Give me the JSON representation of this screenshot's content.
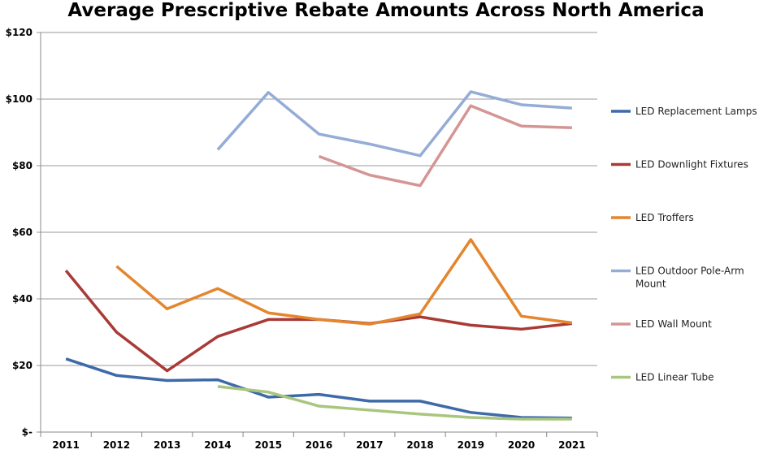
{
  "chart_data": {
    "type": "line",
    "title": "Average Prescriptive Rebate Amounts Across North America",
    "xlabel": "",
    "ylabel": "",
    "categories": [
      "2011",
      "2012",
      "2013",
      "2014",
      "2015",
      "2016",
      "2017",
      "2018",
      "2019",
      "2020",
      "2021"
    ],
    "ylim": [
      0,
      120
    ],
    "yticks": [
      0,
      20,
      40,
      60,
      80,
      100,
      120
    ],
    "ytick_labels": [
      "$-",
      "$20",
      "$40",
      "$60",
      "$80",
      "$100",
      "$120"
    ],
    "grid": "horizontal",
    "legend_position": "right",
    "series": [
      {
        "name": "LED Replacement Lamps",
        "color": "#3d6aa8",
        "values": [
          22,
          17,
          15.5,
          15.7,
          10.5,
          11.3,
          9.3,
          9.3,
          5.9,
          4.4,
          4.2
        ]
      },
      {
        "name": "LED Downlight Fixtures",
        "color": "#a93a36",
        "values": [
          48.5,
          30,
          18.4,
          28.7,
          33.8,
          33.8,
          32.6,
          34.6,
          32.1,
          30.9,
          32.6
        ]
      },
      {
        "name": "LED Troffers",
        "color": "#e3862e",
        "values": [
          null,
          49.8,
          37,
          43.1,
          35.8,
          33.8,
          32.4,
          35.5,
          57.8,
          34.8,
          32.8
        ]
      },
      {
        "name": "LED Outdoor Pole-Arm Mount",
        "color": "#94acd6",
        "values": [
          null,
          null,
          null,
          84.8,
          102,
          89.5,
          86.5,
          83,
          102.2,
          98.3,
          97.3
        ]
      },
      {
        "name": "LED Wall Mount",
        "color": "#d59595",
        "values": [
          null,
          null,
          null,
          null,
          null,
          82.8,
          77.2,
          74,
          98,
          91.9,
          91.4
        ]
      },
      {
        "name": "LED Linear Tube",
        "color": "#a9c67f",
        "values": [
          null,
          null,
          null,
          13.7,
          12,
          7.8,
          6.6,
          5.4,
          4.4,
          3.9,
          3.9
        ]
      }
    ]
  }
}
